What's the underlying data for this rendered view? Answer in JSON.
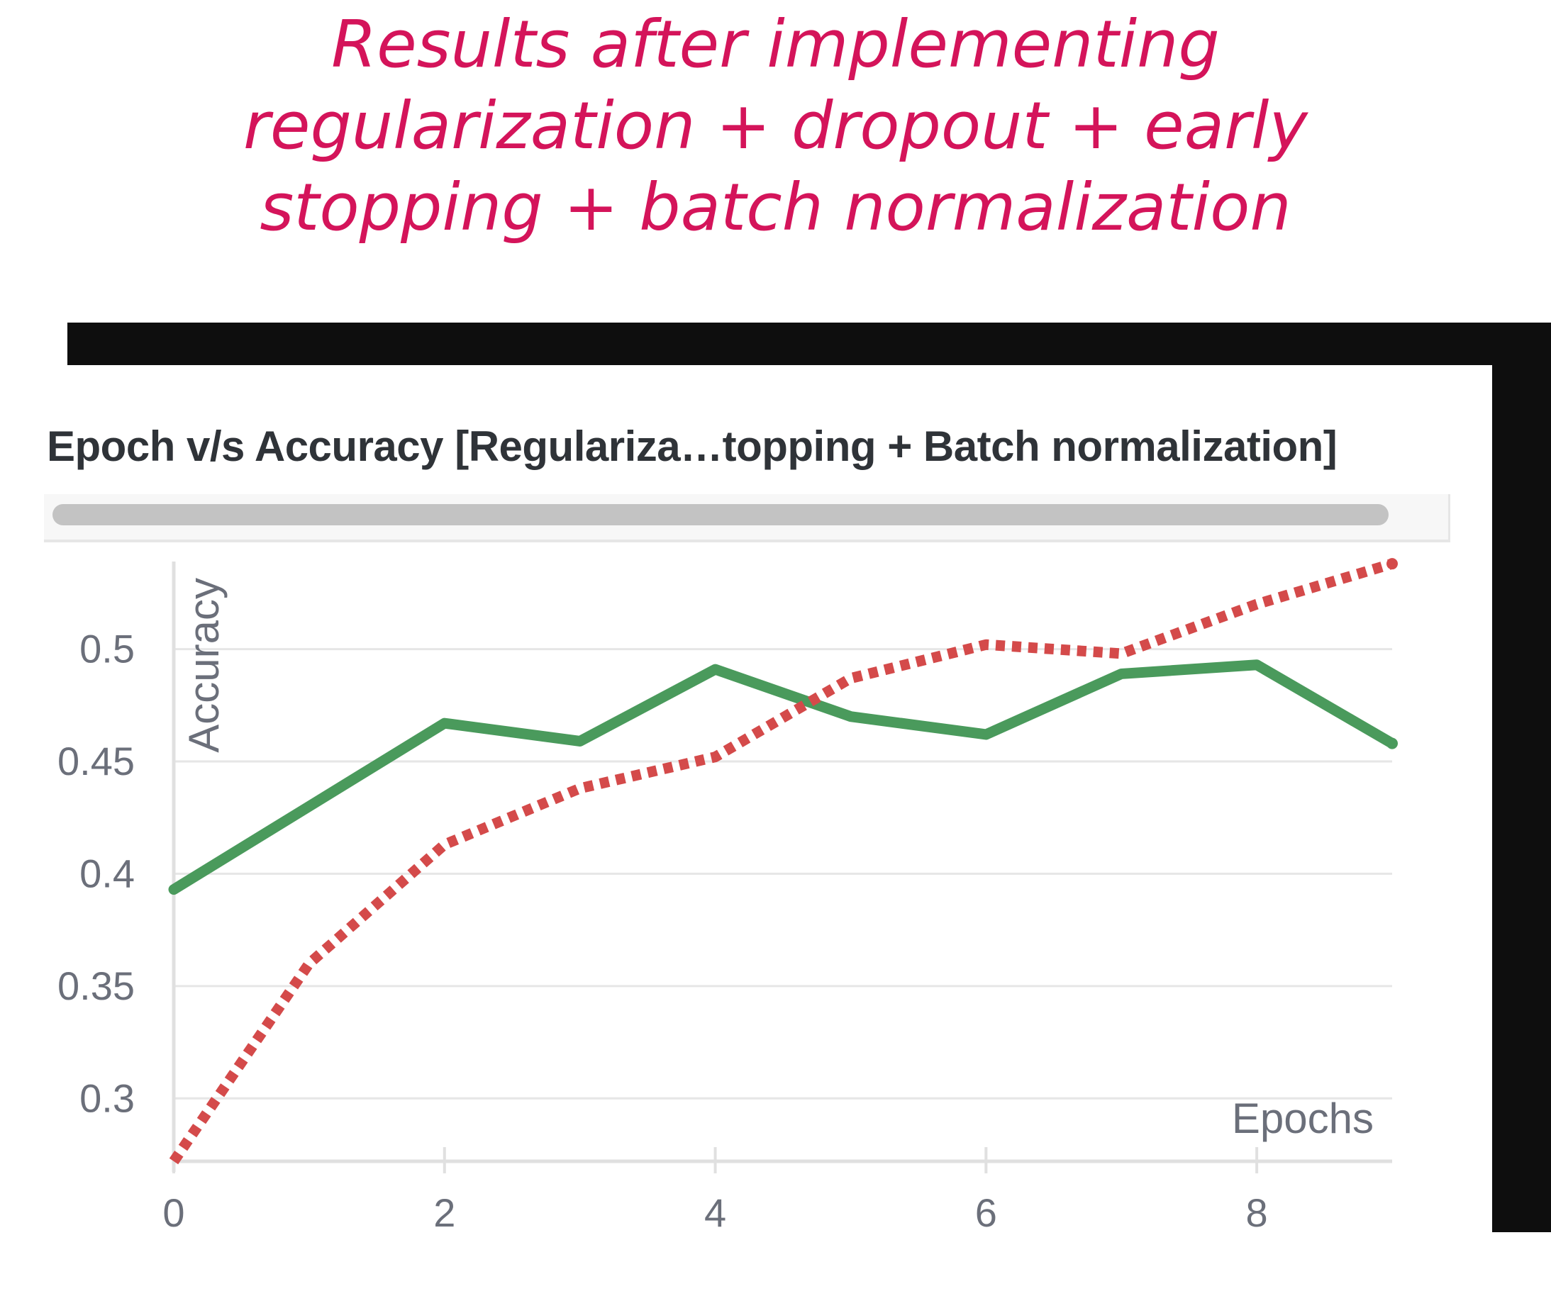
{
  "annotation": {
    "line1": "Results after implementing",
    "line2": "regularization + dropout + early",
    "line3": "stopping + batch normalization",
    "color": "#d4145a"
  },
  "chart_data": {
    "type": "line",
    "title": "Epoch v/s Accuracy [Regulariza…topping + Batch normalization]",
    "xlabel": "Epochs",
    "ylabel": "Accuracy",
    "xlim": [
      0,
      9
    ],
    "ylim": [
      0.272,
      0.539
    ],
    "xticks": [
      0,
      2,
      4,
      6,
      8
    ],
    "yticks": [
      0.3,
      0.35,
      0.4,
      0.45,
      0.5
    ],
    "ytick_labels": [
      "0.3",
      "0.35",
      "0.4",
      "0.45",
      "0.5"
    ],
    "grid": true,
    "series": [
      {
        "color": "#4a9a5c",
        "style": "solid",
        "x": [
          0,
          1,
          2,
          3,
          4,
          5,
          6,
          7,
          8,
          9
        ],
        "values": [
          0.393,
          0.43,
          0.467,
          0.459,
          0.491,
          0.47,
          0.462,
          0.489,
          0.493,
          0.458
        ]
      },
      {
        "color": "#d44a4a",
        "style": "dotted",
        "x": [
          0,
          1,
          2,
          3,
          4,
          5,
          6,
          7,
          8,
          9
        ],
        "values": [
          0.272,
          0.36,
          0.413,
          0.438,
          0.452,
          0.487,
          0.502,
          0.498,
          0.52,
          0.538
        ]
      }
    ]
  }
}
